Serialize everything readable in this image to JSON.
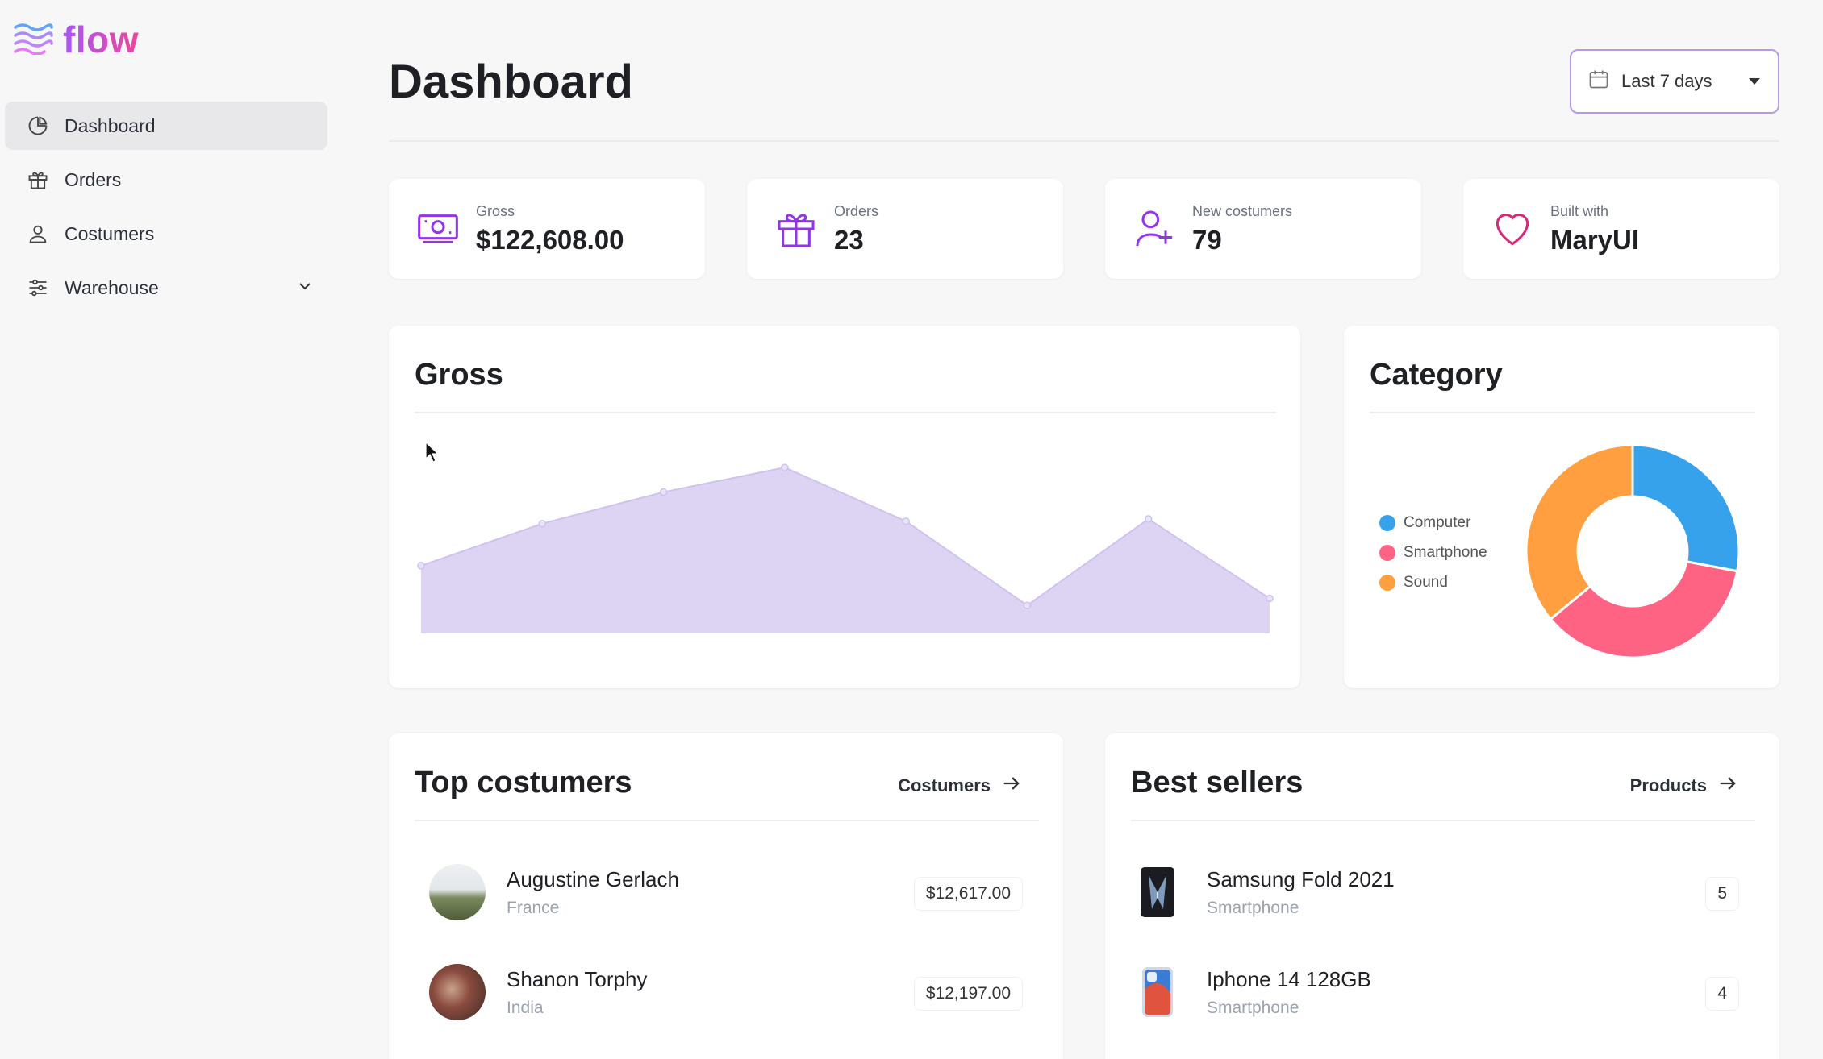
{
  "app": {
    "name": "flow"
  },
  "sidebar": {
    "items": [
      {
        "label": "Dashboard",
        "icon": "chart-pie-icon",
        "active": true
      },
      {
        "label": "Orders",
        "icon": "gift-icon"
      },
      {
        "label": "Costumers",
        "icon": "user-icon"
      },
      {
        "label": "Warehouse",
        "icon": "sliders-icon",
        "expandable": true
      }
    ]
  },
  "header": {
    "title": "Dashboard",
    "period": "Last 7 days"
  },
  "stats": [
    {
      "label": "Gross",
      "value": "$122,608.00",
      "icon": "banknote-icon"
    },
    {
      "label": "Orders",
      "value": "23",
      "icon": "gift-icon"
    },
    {
      "label": "New costumers",
      "value": "79",
      "icon": "user-plus-icon"
    },
    {
      "label": "Built with",
      "value": "MaryUI",
      "icon": "heart-icon"
    }
  ],
  "gross_panel": {
    "title": "Gross"
  },
  "category_panel": {
    "title": "Category"
  },
  "chart_data": [
    {
      "type": "area",
      "title": "Gross",
      "x": [
        1,
        2,
        3,
        4,
        5,
        6,
        7,
        8
      ],
      "values": [
        58,
        94,
        121,
        142,
        96,
        24,
        98,
        30
      ],
      "ylim": [
        0,
        160
      ],
      "color": "#ddd4f4",
      "line_color": "#cfc3ee",
      "grid": false
    },
    {
      "type": "pie",
      "title": "Category",
      "donut": true,
      "labels": [
        "Computer",
        "Smartphone",
        "Sound"
      ],
      "values": [
        28,
        36,
        36
      ],
      "colors": [
        "#36a2eb",
        "#ff6384",
        "#ff9f40"
      ],
      "legend": "left"
    }
  ],
  "top_customers": {
    "title": "Top costumers",
    "link": "Costumers",
    "rows": [
      {
        "name": "Augustine Gerlach",
        "country": "France",
        "amount": "$12,617.00"
      },
      {
        "name": "Shanon Torphy",
        "country": "India",
        "amount": "$12,197.00"
      }
    ]
  },
  "best_sellers": {
    "title": "Best sellers",
    "link": "Products",
    "rows": [
      {
        "name": "Samsung Fold 2021",
        "category": "Smartphone",
        "count": "5"
      },
      {
        "name": "Iphone 14 128GB",
        "category": "Smartphone",
        "count": "4"
      }
    ]
  },
  "colors": {
    "accent": "#a855f7",
    "icon": "#9333ea",
    "active_bg": "#e8e8ea"
  }
}
